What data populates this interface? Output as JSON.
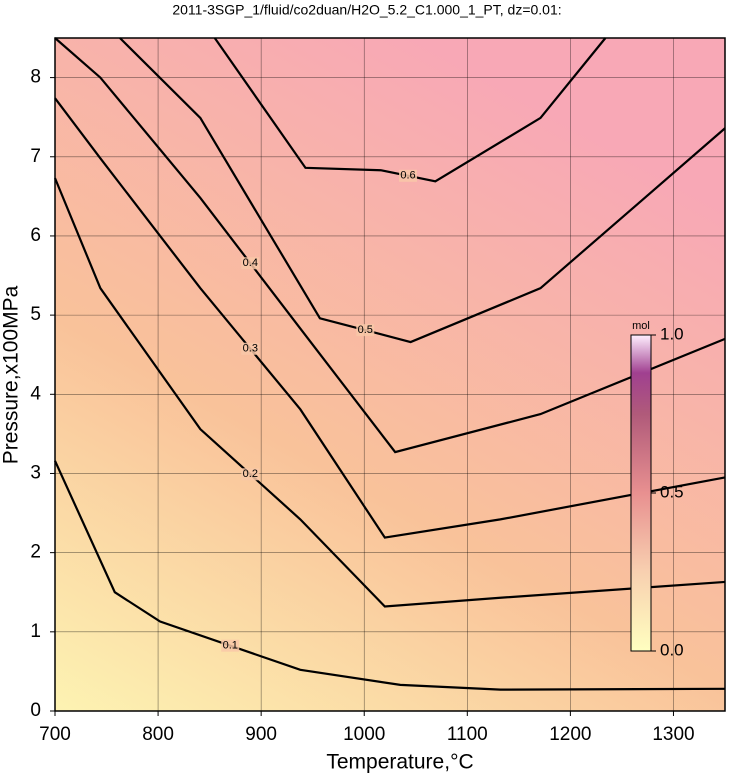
{
  "chart_data": {
    "type": "contour",
    "title": "2011-3SGP_1/fluid/co2duan/H2O_5.2_C1.000_1_PT, dz=0.01:",
    "x_label": "Temperature,°C",
    "y_label": "Pressure,x100MPa",
    "xlim": [
      700,
      1350
    ],
    "ylim": [
      0,
      8.5
    ],
    "xticks": [
      700,
      800,
      900,
      1000,
      1100,
      1200,
      1300
    ],
    "yticks": [
      0,
      1,
      2,
      3,
      4,
      5,
      6,
      7,
      8
    ],
    "grid": true,
    "series": [
      {
        "name": "0.1",
        "color": "#000000",
        "x": [
          700,
          758,
          802,
          938,
          1035,
          1132,
          1350
        ],
        "values": [
          3.16,
          1.5,
          1.13,
          0.52,
          0.33,
          0.27,
          0.28
        ]
      },
      {
        "name": "0.2",
        "color": "#000000",
        "x": [
          700,
          744,
          841,
          938,
          1020,
          1132,
          1350
        ],
        "values": [
          6.73,
          5.34,
          3.56,
          2.42,
          1.32,
          1.43,
          1.63
        ]
      },
      {
        "name": "0.3",
        "color": "#000000",
        "x": [
          700,
          744,
          841,
          938,
          1020,
          1132,
          1350
        ],
        "values": [
          7.74,
          6.98,
          5.34,
          3.81,
          2.19,
          2.42,
          2.95
        ]
      },
      {
        "name": "0.4",
        "color": "#000000",
        "x": [
          700,
          744,
          841,
          938,
          1030,
          1171,
          1350
        ],
        "values": [
          8.5,
          8.0,
          6.48,
          4.83,
          3.27,
          3.75,
          4.7
        ]
      },
      {
        "name": "0.5",
        "color": "#000000",
        "x": [
          763,
          841,
          957,
          1045,
          1171,
          1350
        ],
        "values": [
          8.5,
          7.49,
          4.96,
          4.66,
          5.34,
          7.36
        ]
      },
      {
        "name": "0.6",
        "color": "#000000",
        "x": [
          855,
          943,
          1016,
          1069,
          1171,
          1234
        ],
        "values": [
          8.5,
          6.86,
          6.83,
          6.69,
          7.49,
          8.5
        ]
      }
    ],
    "colorbar": {
      "label": "mol",
      "lim": [
        0,
        1
      ],
      "ticks": [
        {
          "value": 0,
          "label": "0.0"
        },
        {
          "value": 0.5,
          "label": "0.5"
        },
        {
          "value": 1,
          "label": "1.0"
        }
      ]
    }
  }
}
